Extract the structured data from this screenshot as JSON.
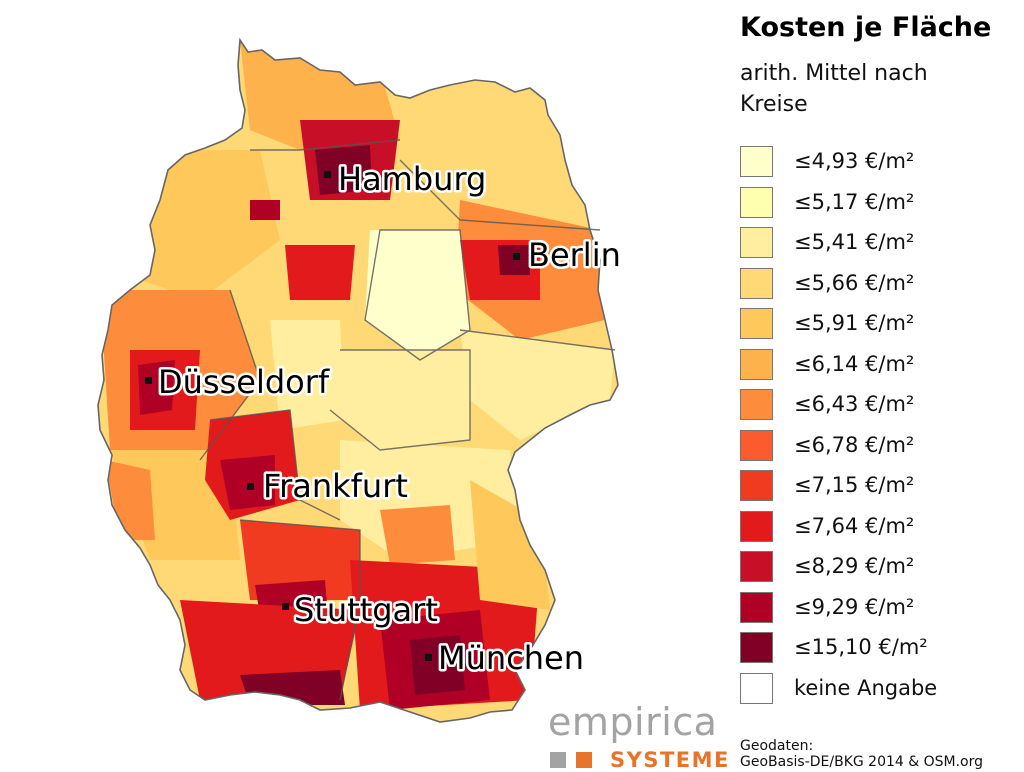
{
  "title": "Kosten je Fläche",
  "subtitle": "arith. Mittel nach Kreise",
  "legend": [
    {
      "label": "≤4,93 €/m²",
      "color": "#ffffcc"
    },
    {
      "label": "≤5,17 €/m²",
      "color": "#ffffb0"
    },
    {
      "label": "≤5,41 €/m²",
      "color": "#ffeda0"
    },
    {
      "label": "≤5,66 €/m²",
      "color": "#fed976"
    },
    {
      "label": "≤5,91 €/m²",
      "color": "#fec85a"
    },
    {
      "label": "≤6,14 €/m²",
      "color": "#feb24c"
    },
    {
      "label": "≤6,43 €/m²",
      "color": "#fd8d3c"
    },
    {
      "label": "≤6,78 €/m²",
      "color": "#fc5b2e"
    },
    {
      "label": "≤7,15 €/m²",
      "color": "#f03b20"
    },
    {
      "label": "≤7,64 €/m²",
      "color": "#e31a1c"
    },
    {
      "label": "≤8,29 €/m²",
      "color": "#c80f28"
    },
    {
      "label": "≤9,29 €/m²",
      "color": "#b10026"
    },
    {
      "label": "≤15,10 €/m²",
      "color": "#800026"
    },
    {
      "label": "keine Angabe",
      "color": "#ffffff"
    }
  ],
  "cities": [
    {
      "name": "Hamburg"
    },
    {
      "name": "Berlin"
    },
    {
      "name": "Düsseldorf"
    },
    {
      "name": "Frankfurt"
    },
    {
      "name": "Stuttgart"
    },
    {
      "name": "München"
    }
  ],
  "logo": {
    "name": "empirica",
    "sub": "SYSTEME",
    "sq1": "#a3a3a3",
    "sq2": "#e8742b"
  },
  "credit": {
    "line1": "Geodaten:",
    "line2": "GeoBasis-DE/BKG 2014 & OSM.org"
  }
}
